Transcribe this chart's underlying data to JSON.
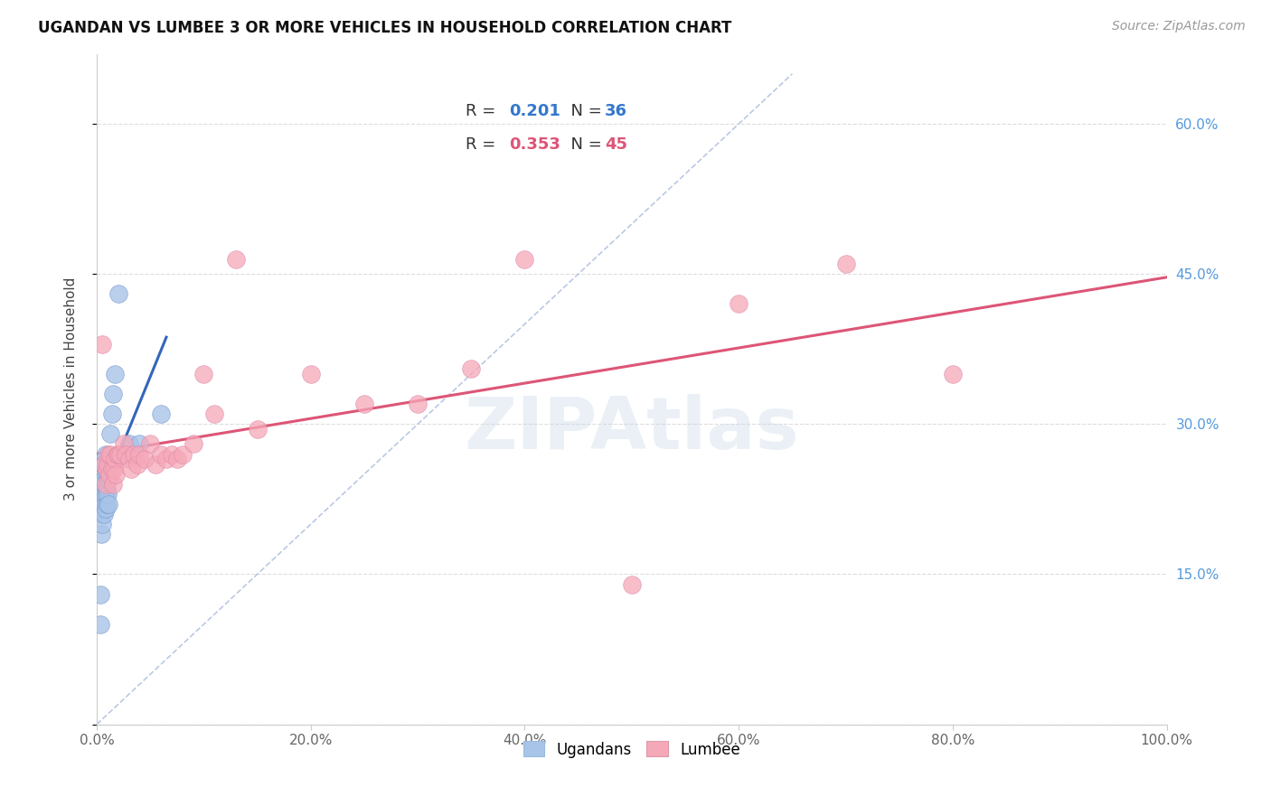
{
  "title": "UGANDAN VS LUMBEE 3 OR MORE VEHICLES IN HOUSEHOLD CORRELATION CHART",
  "source": "Source: ZipAtlas.com",
  "ylabel": "3 or more Vehicles in Household",
  "xlim": [
    0,
    1.0
  ],
  "ylim": [
    0,
    0.67
  ],
  "xticks": [
    0.0,
    0.2,
    0.4,
    0.6,
    0.8,
    1.0
  ],
  "xticklabels": [
    "0.0%",
    "20.0%",
    "40.0%",
    "60.0%",
    "80.0%",
    "100.0%"
  ],
  "yticks": [
    0.0,
    0.15,
    0.3,
    0.45,
    0.6
  ],
  "yticklabels_right": [
    "15.0%",
    "30.0%",
    "45.0%",
    "60.0%"
  ],
  "yticks_right": [
    0.15,
    0.3,
    0.45,
    0.6
  ],
  "right_ytick_color": "#5599dd",
  "ugandan_color": "#a8c4e8",
  "lumbee_color": "#f5a8b8",
  "ugandan_line_color": "#3366bb",
  "lumbee_line_color": "#dd5577",
  "diagonal_color": "#aabbdd",
  "watermark": "ZIPAtlas",
  "ugandan_x": [
    0.002,
    0.003,
    0.003,
    0.004,
    0.004,
    0.005,
    0.005,
    0.005,
    0.006,
    0.006,
    0.006,
    0.007,
    0.007,
    0.007,
    0.007,
    0.008,
    0.008,
    0.008,
    0.008,
    0.009,
    0.009,
    0.009,
    0.01,
    0.01,
    0.011,
    0.011,
    0.012,
    0.013,
    0.014,
    0.015,
    0.017,
    0.02,
    0.025,
    0.03,
    0.04,
    0.06
  ],
  "ugandan_y": [
    0.22,
    0.1,
    0.13,
    0.19,
    0.21,
    0.2,
    0.215,
    0.23,
    0.22,
    0.24,
    0.26,
    0.21,
    0.23,
    0.245,
    0.26,
    0.215,
    0.23,
    0.25,
    0.27,
    0.22,
    0.235,
    0.255,
    0.23,
    0.25,
    0.22,
    0.245,
    0.265,
    0.29,
    0.31,
    0.33,
    0.35,
    0.43,
    0.27,
    0.28,
    0.28,
    0.31
  ],
  "lumbee_x": [
    0.005,
    0.007,
    0.008,
    0.009,
    0.01,
    0.011,
    0.012,
    0.013,
    0.014,
    0.015,
    0.016,
    0.017,
    0.018,
    0.019,
    0.02,
    0.022,
    0.025,
    0.027,
    0.03,
    0.032,
    0.035,
    0.038,
    0.04,
    0.045,
    0.05,
    0.055,
    0.06,
    0.065,
    0.07,
    0.075,
    0.08,
    0.09,
    0.1,
    0.11,
    0.13,
    0.15,
    0.2,
    0.25,
    0.3,
    0.35,
    0.4,
    0.5,
    0.6,
    0.7,
    0.8
  ],
  "lumbee_y": [
    0.38,
    0.26,
    0.24,
    0.255,
    0.26,
    0.27,
    0.25,
    0.27,
    0.255,
    0.24,
    0.255,
    0.265,
    0.25,
    0.27,
    0.27,
    0.27,
    0.28,
    0.27,
    0.265,
    0.255,
    0.27,
    0.26,
    0.27,
    0.265,
    0.28,
    0.26,
    0.27,
    0.265,
    0.27,
    0.265,
    0.27,
    0.28,
    0.35,
    0.31,
    0.465,
    0.295,
    0.35,
    0.32,
    0.32,
    0.355,
    0.465,
    0.14,
    0.42,
    0.46,
    0.35
  ],
  "ugandan_line_x0": 0.0,
  "ugandan_line_x1": 0.065,
  "lumbee_line_x0": 0.0,
  "lumbee_line_x1": 1.0
}
